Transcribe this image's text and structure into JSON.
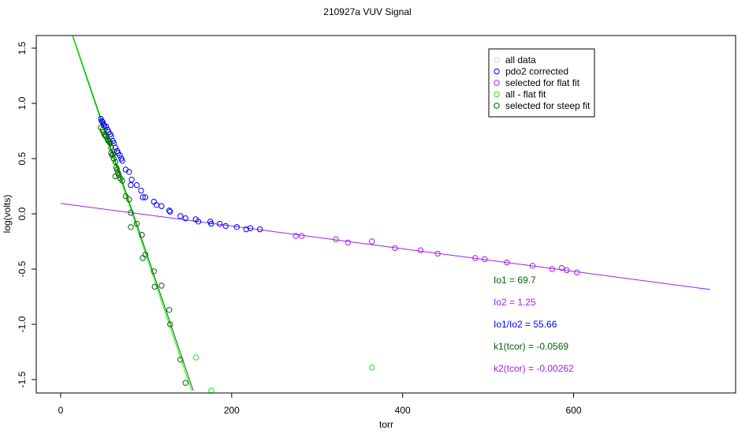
{
  "chart_data": {
    "type": "scatter",
    "title": "210927a   VUV Signal",
    "xlabel": "torr",
    "ylabel": "log(volts)",
    "xlim": [
      -70,
      790
    ],
    "ylim": [
      -1.6,
      1.63
    ],
    "x_ticks": [
      0,
      200,
      400,
      600
    ],
    "x_tick_labels": [
      "0",
      "200",
      "400",
      "600"
    ],
    "y_ticks": [
      -1.5,
      -1.0,
      -0.5,
      0.0,
      0.5,
      1.0,
      1.5
    ],
    "y_tick_labels": [
      "-1.5",
      "-1.0",
      "-0.5",
      "0.0",
      "0.5",
      "1.0",
      "1.5"
    ],
    "grid": false,
    "legend_position": "top-right",
    "legend": [
      {
        "label": "all data",
        "color": "#b0e8e8"
      },
      {
        "label": "pdo2 corrected",
        "color": "#0000ff"
      },
      {
        "label": "selected for flat fit",
        "color": "#a020f0"
      },
      {
        "label": "all - flat fit",
        "color": "#00ff00"
      },
      {
        "label": "selected for steep fit",
        "color": "#006400"
      }
    ],
    "series": [
      {
        "name": "pdo2 corrected",
        "color": "#0000ff",
        "points": [
          [
            47,
            0.86
          ],
          [
            48,
            0.84
          ],
          [
            49,
            0.83
          ],
          [
            50,
            0.81
          ],
          [
            51,
            0.8
          ],
          [
            53,
            0.79
          ],
          [
            55,
            0.76
          ],
          [
            56,
            0.74
          ],
          [
            58,
            0.72
          ],
          [
            59,
            0.7
          ],
          [
            61,
            0.66
          ],
          [
            62,
            0.64
          ],
          [
            64,
            0.6
          ],
          [
            66,
            0.57
          ],
          [
            67,
            0.55
          ],
          [
            69,
            0.53
          ],
          [
            71,
            0.5
          ],
          [
            72,
            0.48
          ],
          [
            76,
            0.4
          ],
          [
            80,
            0.38
          ],
          [
            83,
            0.31
          ],
          [
            82,
            0.26
          ],
          [
            89,
            0.26
          ],
          [
            94,
            0.21
          ],
          [
            96,
            0.15
          ],
          [
            99,
            0.15
          ],
          [
            109,
            0.11
          ],
          [
            112,
            0.08
          ],
          [
            118,
            0.07
          ],
          [
            128,
            0.02
          ],
          [
            127,
            0.03
          ],
          [
            140,
            -0.02
          ],
          [
            146,
            -0.04
          ],
          [
            158,
            -0.05
          ],
          [
            161,
            -0.07
          ],
          [
            175,
            -0.07
          ],
          [
            176,
            -0.09
          ],
          [
            186,
            -0.09
          ],
          [
            193,
            -0.11
          ],
          [
            206,
            -0.12
          ],
          [
            217,
            -0.14
          ],
          [
            222,
            -0.13
          ],
          [
            233,
            -0.14
          ]
        ]
      },
      {
        "name": "selected for flat fit",
        "color": "#a020f0",
        "points": [
          [
            275,
            -0.2
          ],
          [
            282,
            -0.2
          ],
          [
            322,
            -0.23
          ],
          [
            336,
            -0.26
          ],
          [
            364,
            -0.25
          ],
          [
            391,
            -0.31
          ],
          [
            421,
            -0.33
          ],
          [
            441,
            -0.36
          ],
          [
            485,
            -0.4
          ],
          [
            496,
            -0.41
          ],
          [
            522,
            -0.44
          ],
          [
            552,
            -0.47
          ],
          [
            575,
            -0.5
          ],
          [
            586,
            -0.49
          ],
          [
            592,
            -0.51
          ],
          [
            604,
            -0.53
          ]
        ]
      },
      {
        "name": "all - flat fit",
        "color": "#00ff00",
        "points": [
          [
            158,
            -1.3
          ],
          [
            176,
            -1.6
          ],
          [
            364,
            -1.39
          ]
        ]
      },
      {
        "name": "selected for steep fit",
        "color": "#006400",
        "points": [
          [
            47,
            0.78
          ],
          [
            49,
            0.76
          ],
          [
            50,
            0.74
          ],
          [
            51,
            0.72
          ],
          [
            52,
            0.71
          ],
          [
            53,
            0.7
          ],
          [
            55,
            0.67
          ],
          [
            56,
            0.66
          ],
          [
            57,
            0.65
          ],
          [
            58,
            0.64
          ],
          [
            59,
            0.6
          ],
          [
            59,
            0.55
          ],
          [
            60,
            0.53
          ],
          [
            61,
            0.54
          ],
          [
            62,
            0.5
          ],
          [
            64,
            0.47
          ],
          [
            65,
            0.42
          ],
          [
            66,
            0.4
          ],
          [
            67,
            0.37
          ],
          [
            68,
            0.35
          ],
          [
            70,
            0.32
          ],
          [
            72,
            0.3
          ],
          [
            64,
            0.34
          ],
          [
            76,
            0.16
          ],
          [
            80,
            0.13
          ],
          [
            82,
            0.01
          ],
          [
            82,
            -0.12
          ],
          [
            89,
            -0.09
          ],
          [
            95,
            -0.19
          ],
          [
            96,
            -0.4
          ],
          [
            99,
            -0.37
          ],
          [
            109,
            -0.52
          ],
          [
            110,
            -0.66
          ],
          [
            118,
            -0.65
          ],
          [
            127,
            -0.87
          ],
          [
            128,
            -1.0
          ],
          [
            140,
            -1.32
          ],
          [
            146,
            -1.53
          ]
        ]
      }
    ],
    "fit_lines": [
      {
        "name": "flat fit",
        "color": "#a020f0",
        "x": [
          0,
          760
        ],
        "y": [
          0.095,
          -0.685
        ]
      },
      {
        "name": "steep fit",
        "color": "#006400",
        "x": [
          12,
          155
        ],
        "y": [
          1.66,
          -1.6
        ]
      },
      {
        "name": "steep fit lower",
        "color": "#00ff00",
        "x": [
          12,
          153
        ],
        "y": [
          1.65,
          -1.6
        ]
      }
    ],
    "annotations": [
      {
        "label": "Io1 = ",
        "value": "69.7",
        "color": "#006400"
      },
      {
        "label": "Io2 = ",
        "value": "1.25",
        "color": "#a020f0"
      },
      {
        "label": "Io1/Io2 = ",
        "value": "55.66",
        "color": "#0000ff"
      },
      {
        "label": "k1(tcor) = ",
        "value": "-0.0569",
        "color": "#006400"
      },
      {
        "label": "k2(tcor) = ",
        "value": "-0.00262",
        "color": "#a020f0"
      }
    ]
  }
}
